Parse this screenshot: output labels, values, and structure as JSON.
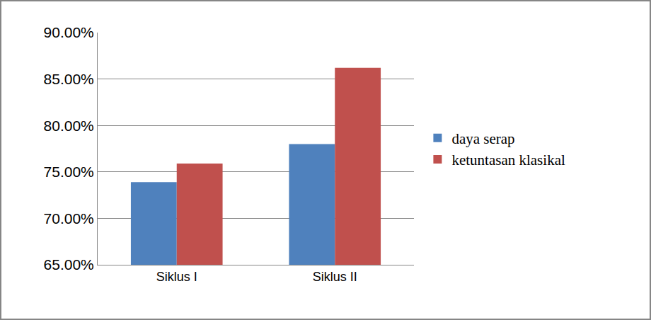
{
  "chart_data": {
    "type": "bar",
    "categories": [
      "Siklus I",
      "Siklus II"
    ],
    "series": [
      {
        "name": "daya serap",
        "color": "#4f81bd",
        "values": [
          73.9,
          78.0
        ]
      },
      {
        "name": "ketuntasan klasikal",
        "color": "#c0504d",
        "values": [
          75.9,
          86.2
        ]
      }
    ],
    "ylim": [
      65,
      90
    ],
    "yticks": [
      {
        "value": 65,
        "label": "65.00%"
      },
      {
        "value": 70,
        "label": "70.00%"
      },
      {
        "value": 75,
        "label": "75.00%"
      },
      {
        "value": 80,
        "label": "80.00%"
      },
      {
        "value": 85,
        "label": "85.00%"
      },
      {
        "value": 90,
        "label": "90.00%"
      }
    ],
    "grid": true,
    "legend": "right"
  }
}
